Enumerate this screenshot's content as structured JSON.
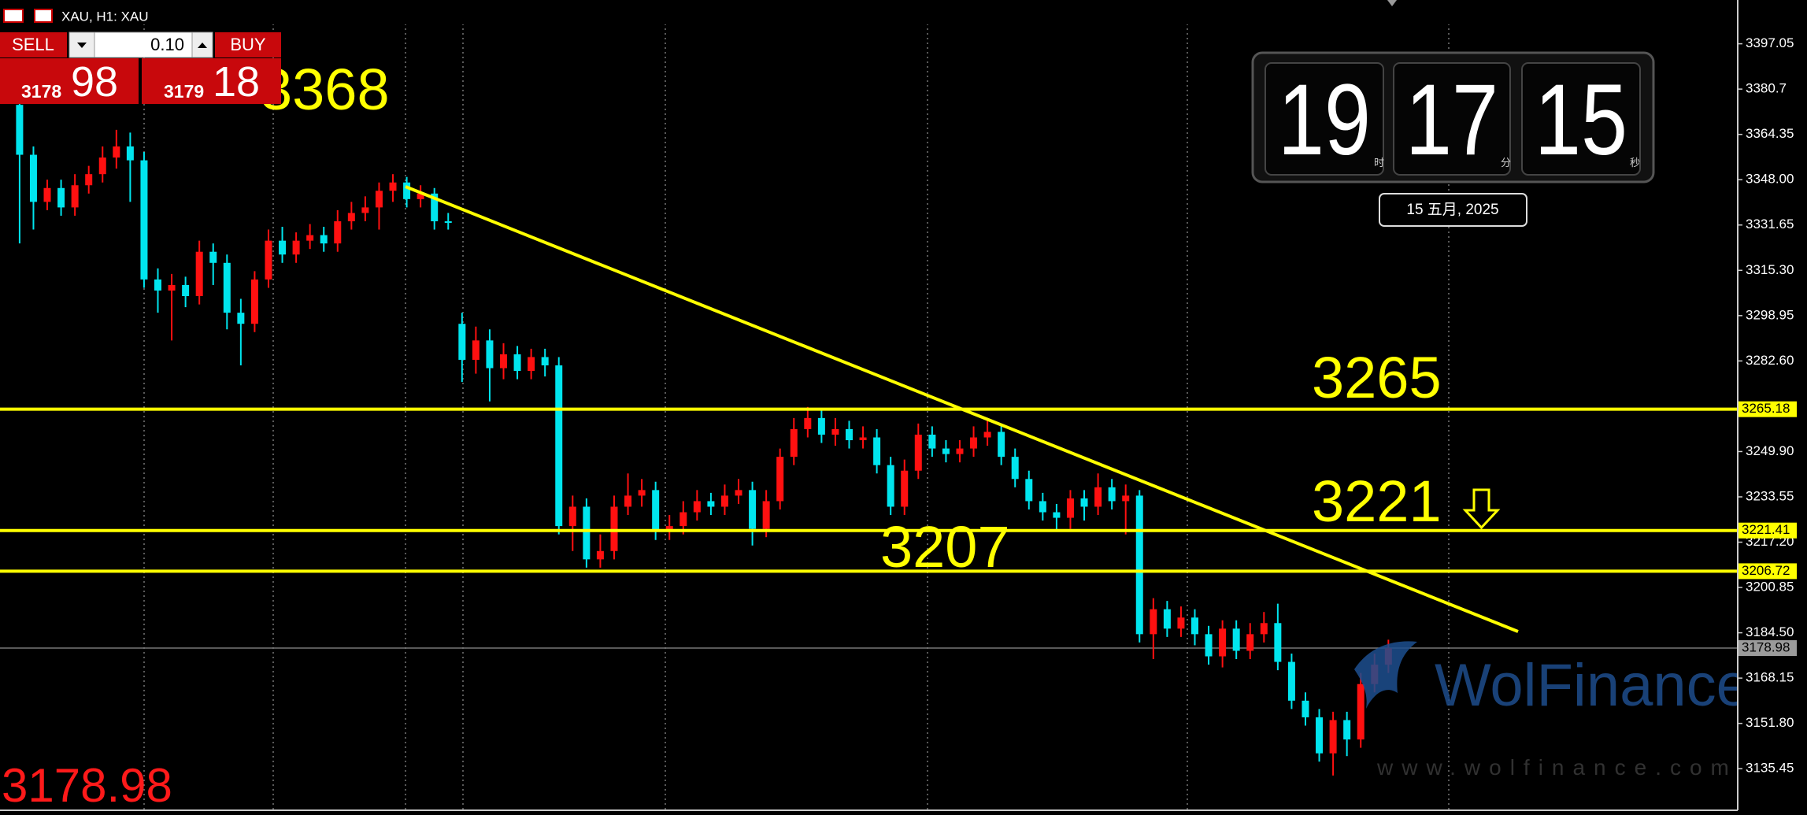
{
  "toolbar": {
    "symbol": "XAU, H1:  XAU"
  },
  "trade_panel": {
    "sell": "SELL",
    "buy": "BUY",
    "lots": "0.10",
    "bid_big": "3178",
    "bid_small": "98",
    "ask_big": "3179",
    "ask_small": "18"
  },
  "clock": {
    "hours": "19",
    "minutes": "17",
    "seconds": "15",
    "hours_unit": "时",
    "minutes_unit": "分",
    "seconds_unit": "秒",
    "date": "15 五月, 2025"
  },
  "watermark": {
    "brand": "WolFinance",
    "url": "www.wolfinance.com"
  },
  "chart_data": {
    "type": "candlestick",
    "ylim": [
      3120.45,
      3412.85
    ],
    "yticks": [
      3397.05,
      3380.7,
      3364.35,
      {
        "value": 3348,
        "label": "3348.00"
      },
      3331.65,
      {
        "value": 3315.3,
        "label": "3315.30"
      },
      3298.95,
      {
        "value": 3282.6,
        "label": "3282.60"
      },
      {
        "value": 3249.9,
        "label": "3249.90"
      },
      3233.55,
      {
        "value": 3217.2,
        "label": "3217.20"
      },
      3200.85,
      {
        "value": 3184.5,
        "label": "3184.50"
      },
      3168.15,
      {
        "value": 3151.8,
        "label": "3151.80"
      },
      3135.45
    ],
    "levels": [
      3265.18,
      3221.41,
      3206.72
    ],
    "level_color": "#ffff00",
    "current_price": 3178.98,
    "up_color": "#ff1010",
    "down_color": "#00e5ee",
    "annotations": [
      "3368",
      "3265",
      "3221",
      "3207"
    ],
    "candles": [
      [
        3375,
        3378,
        3325,
        3357
      ],
      [
        3357,
        3360,
        3330,
        3340
      ],
      [
        3340,
        3348,
        3337,
        3345
      ],
      [
        3345,
        3348,
        3335,
        3338
      ],
      [
        3338,
        3350,
        3335,
        3346
      ],
      [
        3346,
        3353,
        3343,
        3350
      ],
      [
        3350,
        3360,
        3347,
        3356
      ],
      [
        3356,
        3366,
        3352,
        3360
      ],
      [
        3360,
        3365,
        3340,
        3355
      ],
      [
        3355,
        3358,
        3309,
        3312
      ],
      [
        3312,
        3316,
        3300,
        3308
      ],
      [
        3308,
        3314,
        3290,
        3310
      ],
      [
        3310,
        3313,
        3302,
        3306
      ],
      [
        3306,
        3326,
        3303,
        3322
      ],
      [
        3322,
        3325,
        3310,
        3318
      ],
      [
        3318,
        3321,
        3294,
        3300
      ],
      [
        3300,
        3305,
        3281,
        3296
      ],
      [
        3296,
        3315,
        3293,
        3312
      ],
      [
        3312,
        3330,
        3309,
        3326
      ],
      [
        3326,
        3331,
        3318,
        3321
      ],
      [
        3321,
        3329,
        3318,
        3326
      ],
      [
        3326,
        3332,
        3323,
        3328
      ],
      [
        3328,
        3331,
        3322,
        3325
      ],
      [
        3325,
        3337,
        3322,
        3333
      ],
      [
        3333,
        3340,
        3330,
        3336
      ],
      [
        3336,
        3342,
        3333,
        3338
      ],
      [
        3338,
        3347,
        3330,
        3344
      ],
      [
        3344,
        3350,
        3340,
        3347
      ],
      [
        3347,
        3349,
        3338,
        3341
      ],
      [
        3341,
        3346,
        3338,
        3343
      ],
      [
        3343,
        3345,
        3330,
        3333
      ],
      [
        3333,
        3336,
        3330,
        3333
      ],
      [
        3296,
        3300,
        3275,
        3283
      ],
      [
        3283,
        3295,
        3278,
        3290
      ],
      [
        3290,
        3294,
        3268,
        3280
      ],
      [
        3280,
        3289,
        3276,
        3285
      ],
      [
        3285,
        3288,
        3276,
        3279
      ],
      [
        3279,
        3287,
        3276,
        3284
      ],
      [
        3284,
        3287,
        3277,
        3281
      ],
      [
        3281,
        3284,
        3220,
        3223
      ],
      [
        3223,
        3234,
        3214,
        3230
      ],
      [
        3230,
        3233,
        3208,
        3211
      ],
      [
        3211,
        3220,
        3208,
        3214
      ],
      [
        3214,
        3234,
        3211,
        3230
      ],
      [
        3230,
        3242,
        3227,
        3234
      ],
      [
        3234,
        3240,
        3230,
        3236
      ],
      [
        3236,
        3239,
        3218,
        3221
      ],
      [
        3221,
        3227,
        3218,
        3223
      ],
      [
        3223,
        3232,
        3220,
        3228
      ],
      [
        3228,
        3236,
        3225,
        3232
      ],
      [
        3232,
        3235,
        3227,
        3230
      ],
      [
        3230,
        3238,
        3227,
        3234
      ],
      [
        3234,
        3240,
        3231,
        3236
      ],
      [
        3236,
        3239,
        3216,
        3222
      ],
      [
        3222,
        3236,
        3219,
        3232
      ],
      [
        3232,
        3251,
        3229,
        3248
      ],
      [
        3248,
        3262,
        3245,
        3258
      ],
      [
        3258,
        3266,
        3255,
        3262
      ],
      [
        3262,
        3265,
        3253,
        3256
      ],
      [
        3256,
        3262,
        3252,
        3258
      ],
      [
        3258,
        3261,
        3251,
        3254
      ],
      [
        3254,
        3259,
        3251,
        3255
      ],
      [
        3255,
        3258,
        3242,
        3245
      ],
      [
        3245,
        3248,
        3227,
        3230
      ],
      [
        3230,
        3247,
        3227,
        3243
      ],
      [
        3243,
        3260,
        3240,
        3256
      ],
      [
        3256,
        3259,
        3248,
        3251
      ],
      [
        3251,
        3254,
        3246,
        3249
      ],
      [
        3249,
        3254,
        3246,
        3251
      ],
      [
        3251,
        3259,
        3248,
        3255
      ],
      [
        3255,
        3261,
        3252,
        3257
      ],
      [
        3257,
        3260,
        3245,
        3248
      ],
      [
        3248,
        3251,
        3237,
        3240
      ],
      [
        3240,
        3243,
        3229,
        3232
      ],
      [
        3232,
        3235,
        3225,
        3228
      ],
      [
        3228,
        3231,
        3221,
        3226
      ],
      [
        3226,
        3236,
        3222,
        3233
      ],
      [
        3233,
        3236,
        3225,
        3230
      ],
      [
        3230,
        3242,
        3227,
        3237
      ],
      [
        3237,
        3240,
        3229,
        3232
      ],
      [
        3232,
        3238,
        3220,
        3234
      ],
      [
        3234,
        3236,
        3181,
        3184
      ],
      [
        3184,
        3197,
        3175,
        3193
      ],
      [
        3193,
        3196,
        3183,
        3186
      ],
      [
        3186,
        3194,
        3183,
        3190
      ],
      [
        3190,
        3193,
        3180,
        3184
      ],
      [
        3184,
        3187,
        3173,
        3176
      ],
      [
        3176,
        3189,
        3172,
        3186
      ],
      [
        3186,
        3189,
        3175,
        3178
      ],
      [
        3178,
        3188,
        3175,
        3184
      ],
      [
        3184,
        3192,
        3181,
        3188
      ],
      [
        3188,
        3195,
        3171,
        3174
      ],
      [
        3174,
        3177,
        3157,
        3160
      ],
      [
        3160,
        3163,
        3151,
        3154
      ],
      [
        3154,
        3157,
        3138,
        3141
      ],
      [
        3141,
        3156,
        3133,
        3153
      ],
      [
        3153,
        3156,
        3140,
        3146
      ],
      [
        3146,
        3170,
        3143,
        3166
      ],
      [
        3166,
        3177,
        3163,
        3173
      ],
      [
        3173,
        3182,
        3170,
        3179
      ]
    ]
  }
}
